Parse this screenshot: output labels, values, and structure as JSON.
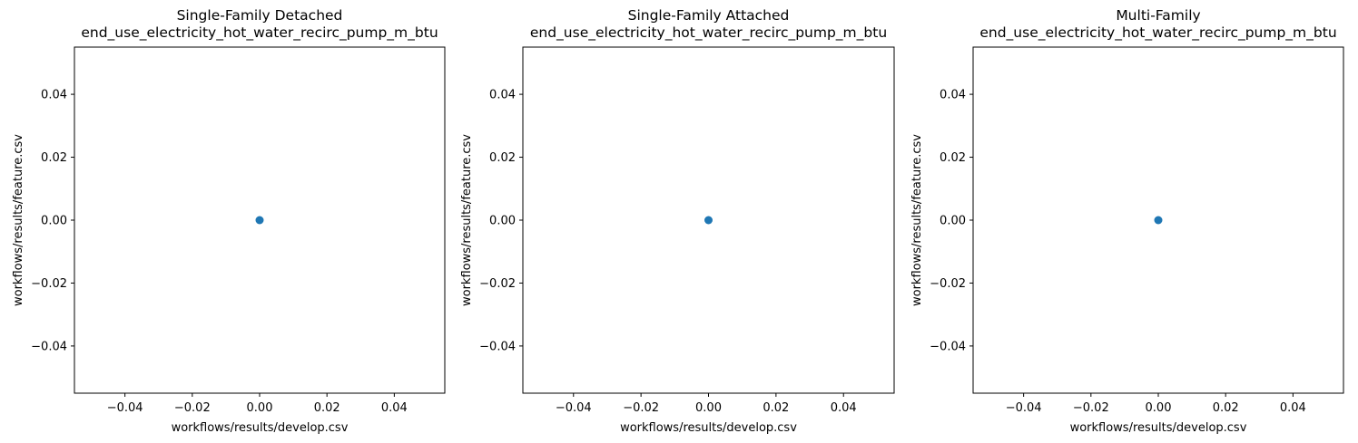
{
  "chart_data": [
    {
      "type": "scatter",
      "title": [
        "Single-Family Detached",
        "end_use_electricity_hot_water_recirc_pump_m_btu"
      ],
      "xlabel": "workflows/results/develop.csv",
      "ylabel": "workflows/results/feature.csv",
      "xlim": [
        -0.055,
        0.055
      ],
      "ylim": [
        -0.055,
        0.055
      ],
      "xticks": [
        -0.04,
        -0.02,
        0.0,
        0.02,
        0.04
      ],
      "yticks": [
        -0.04,
        -0.02,
        0.0,
        0.02,
        0.04
      ],
      "tick_labels": [
        "−0.04",
        "−0.02",
        "0.00",
        "0.02",
        "0.04"
      ],
      "points": [
        {
          "x": 0,
          "y": 0
        }
      ],
      "color": "#1f77b4",
      "grid": false
    },
    {
      "type": "scatter",
      "title": [
        "Single-Family Attached",
        "end_use_electricity_hot_water_recirc_pump_m_btu"
      ],
      "xlabel": "workflows/results/develop.csv",
      "ylabel": "workflows/results/feature.csv",
      "xlim": [
        -0.055,
        0.055
      ],
      "ylim": [
        -0.055,
        0.055
      ],
      "xticks": [
        -0.04,
        -0.02,
        0.0,
        0.02,
        0.04
      ],
      "yticks": [
        -0.04,
        -0.02,
        0.0,
        0.02,
        0.04
      ],
      "tick_labels": [
        "−0.04",
        "−0.02",
        "0.00",
        "0.02",
        "0.04"
      ],
      "points": [
        {
          "x": 0,
          "y": 0
        }
      ],
      "color": "#1f77b4",
      "grid": false
    },
    {
      "type": "scatter",
      "title": [
        "Multi-Family",
        "end_use_electricity_hot_water_recirc_pump_m_btu"
      ],
      "xlabel": "workflows/results/develop.csv",
      "ylabel": "workflows/results/feature.csv",
      "xlim": [
        -0.055,
        0.055
      ],
      "ylim": [
        -0.055,
        0.055
      ],
      "xticks": [
        -0.04,
        -0.02,
        0.0,
        0.02,
        0.04
      ],
      "yticks": [
        -0.04,
        -0.02,
        0.0,
        0.02,
        0.04
      ],
      "tick_labels": [
        "−0.04",
        "−0.02",
        "0.00",
        "0.02",
        "0.04"
      ],
      "points": [
        {
          "x": 0,
          "y": 0
        }
      ],
      "color": "#1f77b4",
      "grid": false
    }
  ]
}
